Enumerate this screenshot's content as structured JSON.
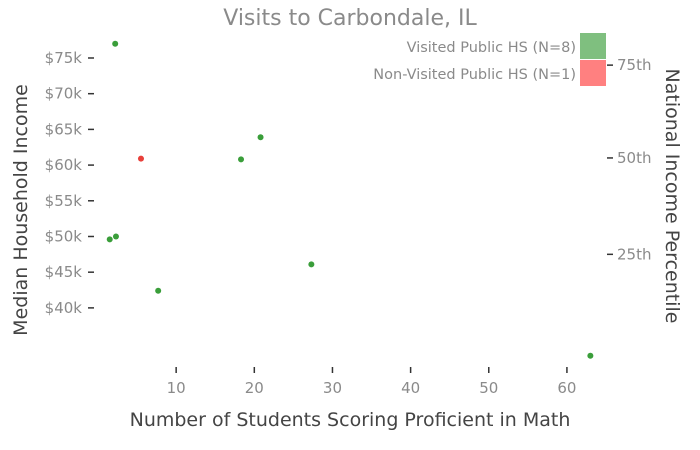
{
  "chart_data": {
    "type": "scatter",
    "title": "Visits to Carbondale, IL",
    "xlabel": "Number of Students Scoring Proficient in Math",
    "ylabel": "Median Household Income",
    "y2label": "National Income Percentile",
    "xlim": [
      0,
      65
    ],
    "ylim": [
      32000,
      78500
    ],
    "x_ticks": [
      10,
      20,
      30,
      40,
      50,
      60
    ],
    "x_tick_labels": [
      "10",
      "20",
      "30",
      "40",
      "50",
      "60"
    ],
    "y_ticks": [
      40000,
      45000,
      50000,
      55000,
      60000,
      65000,
      70000,
      75000
    ],
    "y_tick_labels": [
      "$40k",
      "$45k",
      "$50k",
      "$55k",
      "$60k",
      "$65k",
      "$70k",
      "$75k"
    ],
    "y2_ticks": [
      47500,
      61000,
      74000
    ],
    "y2_tick_labels": [
      "25th",
      "50th",
      "75th"
    ],
    "grid": false,
    "legend_position": "top-right",
    "series": [
      {
        "name": "Visited Public HS (N=8)",
        "color": "#3a9e3a",
        "legend_color": "#7fbf7f",
        "points": [
          {
            "x": 2.2,
            "y": 77000
          },
          {
            "x": 20.8,
            "y": 63900
          },
          {
            "x": 18.3,
            "y": 60800
          },
          {
            "x": 2.3,
            "y": 50000
          },
          {
            "x": 1.5,
            "y": 49600
          },
          {
            "x": 27.3,
            "y": 46100
          },
          {
            "x": 7.7,
            "y": 42400
          },
          {
            "x": 63.0,
            "y": 33300
          }
        ]
      },
      {
        "name": "Non-Visited Public HS (N=1)",
        "color": "#e8403a",
        "legend_color": "#ff8080",
        "points": [
          {
            "x": 5.5,
            "y": 60900
          }
        ]
      }
    ]
  }
}
